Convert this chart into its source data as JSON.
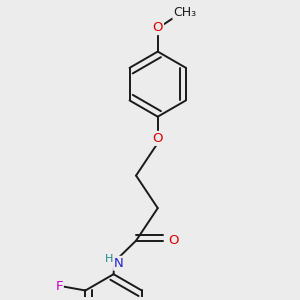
{
  "bg_color": "#ececec",
  "bond_color": "#1a1a1a",
  "bond_width": 1.4,
  "atom_colors": {
    "O": "#dd0000",
    "N": "#2222cc",
    "F": "#cc00cc",
    "H": "#228888",
    "C": "#1a1a1a"
  },
  "font_size": 9.5,
  "dbo": 0.055,
  "ring_r": 0.42
}
